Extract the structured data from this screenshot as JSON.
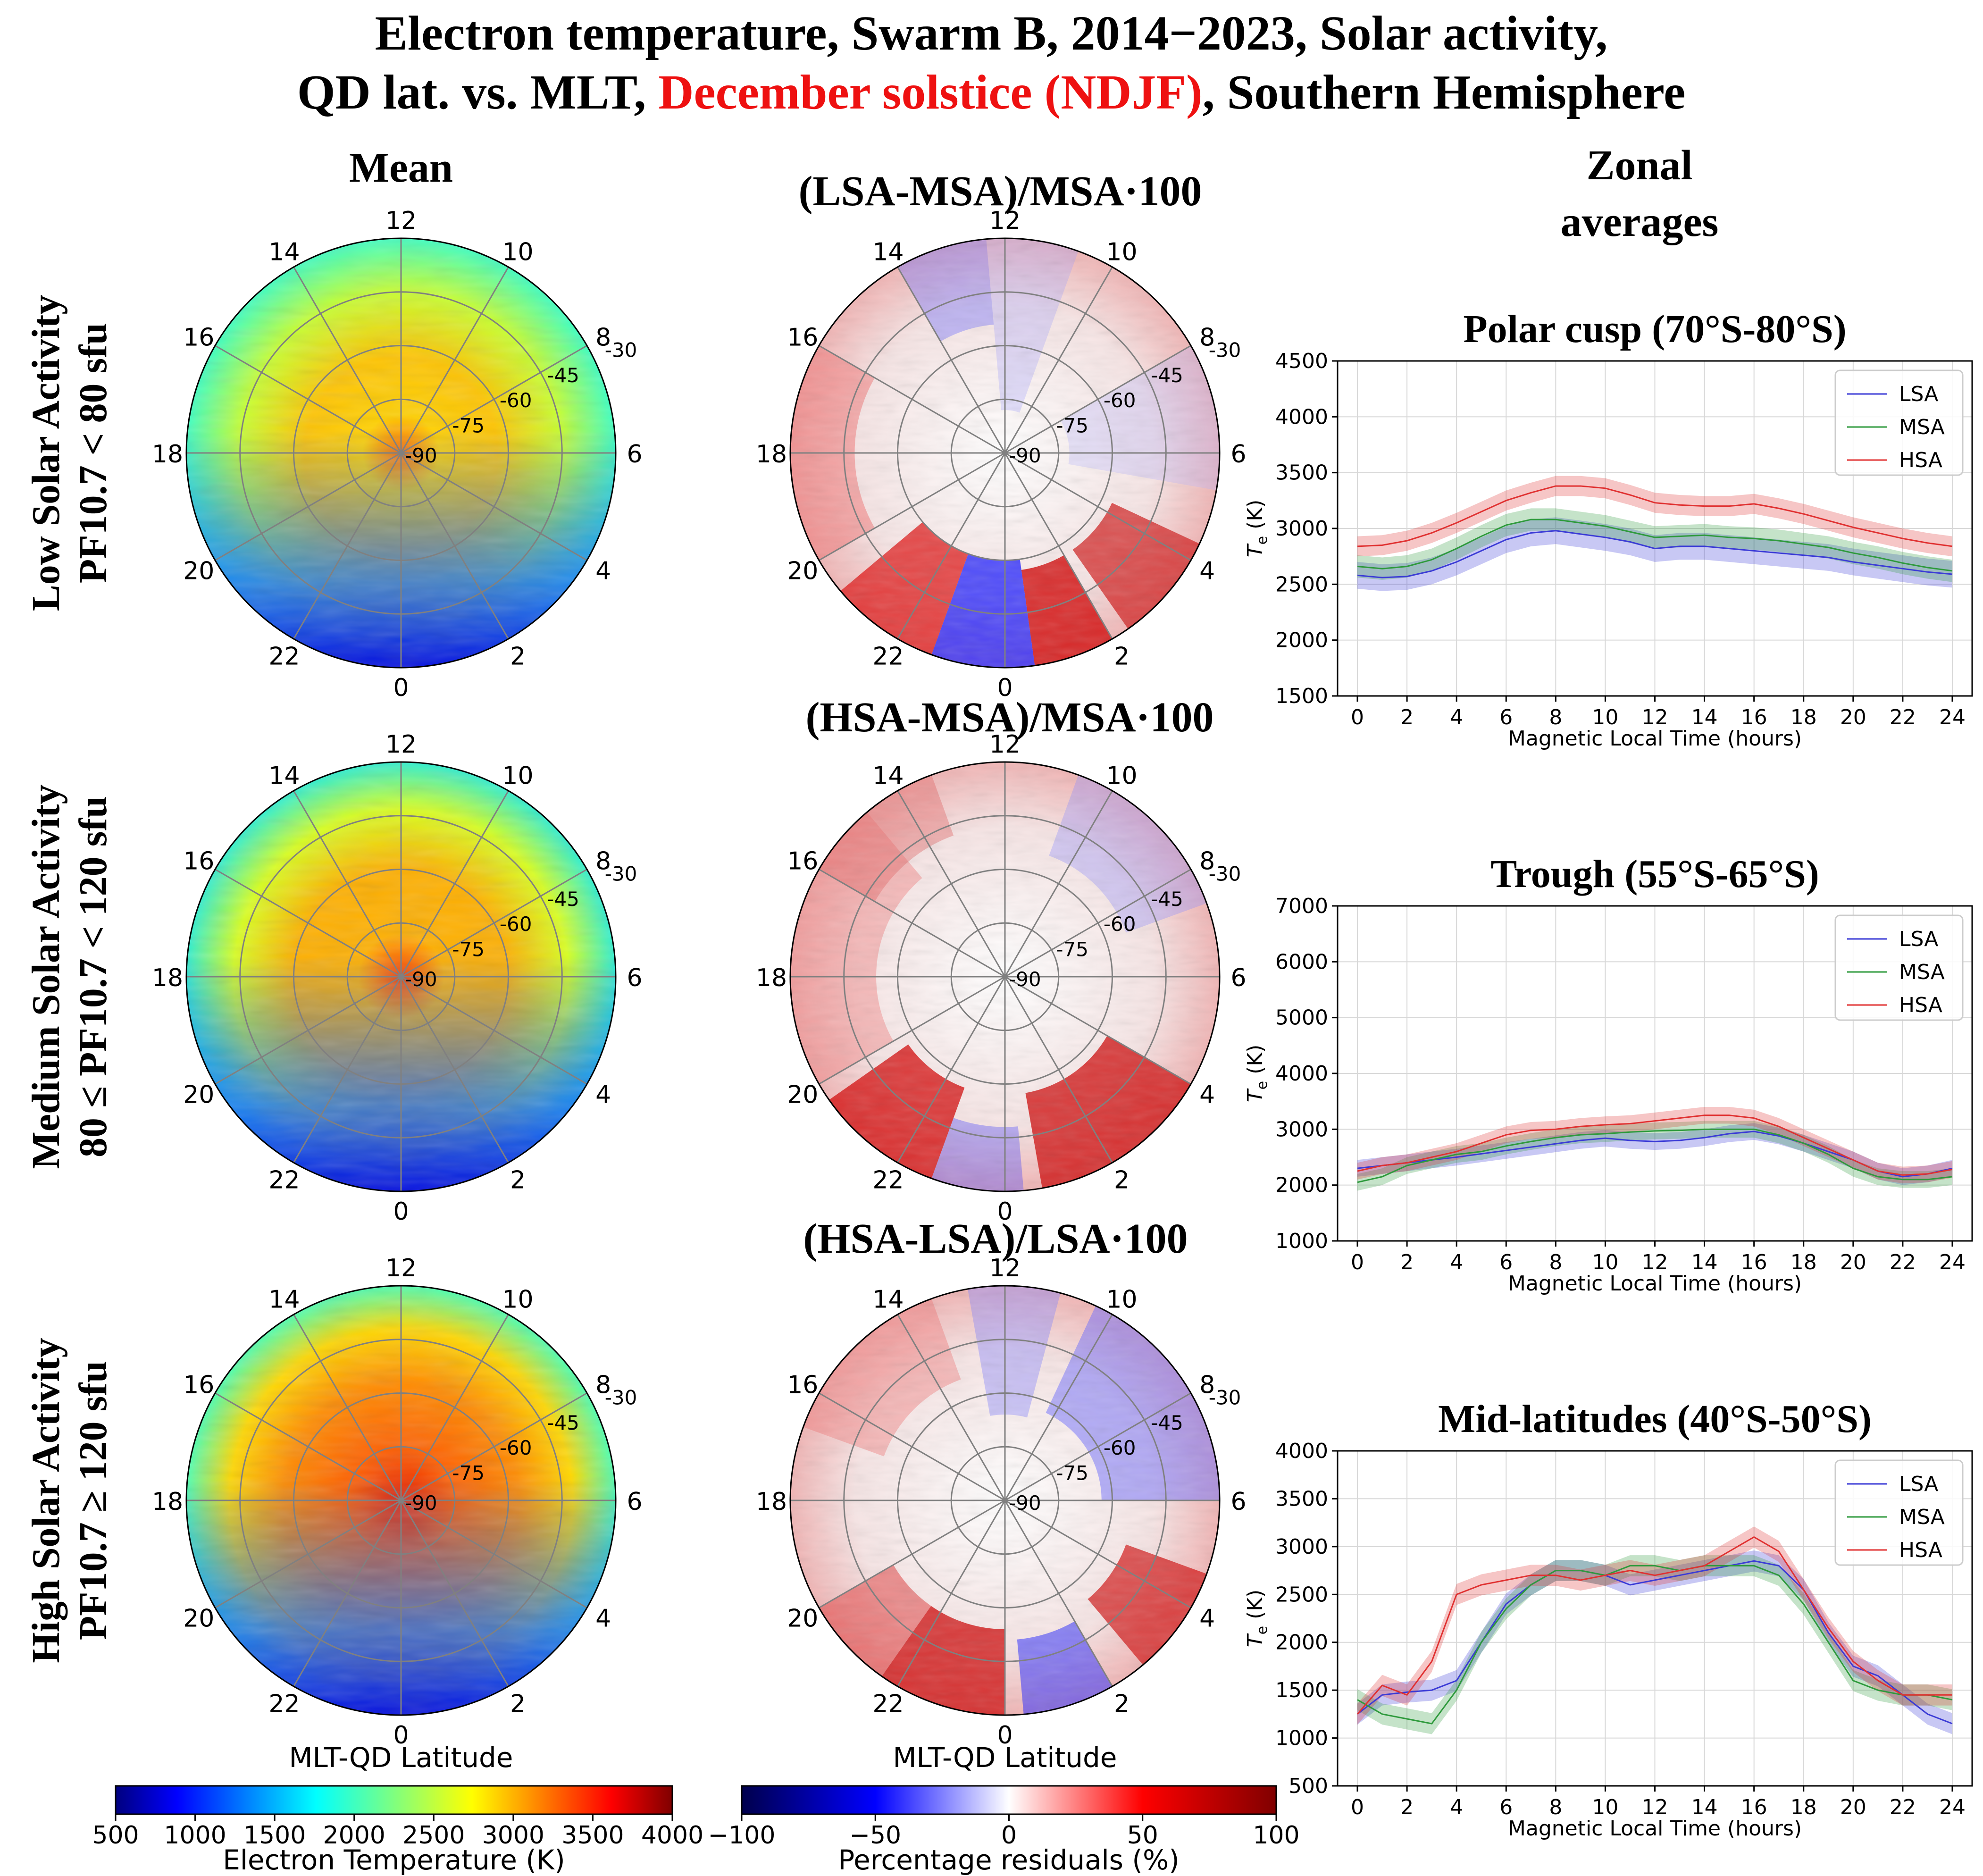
{
  "title": {
    "line1": "Electron temperature, Swarm B, 2014−2023, Solar activity,",
    "line2_prefix": "QD lat. vs. MLT, ",
    "line2_highlight": "December solstice (NDJF)",
    "line2_suffix": ", Southern Hemisphere",
    "highlight_color": "#ee1111"
  },
  "column_titles": {
    "mean": "Mean",
    "zonal_line1": "Zonal",
    "zonal_line2": "averages"
  },
  "row_labels": [
    {
      "line1": "Low Solar Activity",
      "line2": "PF10.7 < 80 sfu"
    },
    {
      "line1": "Medium Solar Activity",
      "line2": "80 ≤ PF10.7 < 120 sfu"
    },
    {
      "line1": "High Solar Activity",
      "line2": "PF10.7 ≥ 120 sfu"
    }
  ],
  "residual_titles": [
    "(LSA-MSA)/MSA·100",
    "(HSA-MSA)/MSA·100",
    "(HSA-LSA)/LSA·100"
  ],
  "polar": {
    "mlt_labels": [
      "12",
      "14",
      "16",
      "18",
      "20",
      "22",
      "0",
      "2",
      "4",
      "6",
      "8",
      "10"
    ],
    "lat_labels": [
      "-90",
      "-75",
      "-60",
      "-45",
      "-30"
    ],
    "xlabel": "MLT-QD Latitude"
  },
  "colorbars": {
    "temperature": {
      "label": "Electron Temperature (K)",
      "ticks": [
        "500",
        "1000",
        "1500",
        "2000",
        "2500",
        "3000",
        "3500",
        "4000"
      ],
      "range": [
        500,
        4000
      ],
      "colormap": "jet"
    },
    "residual": {
      "label": "Percentage residuals (%)",
      "ticks": [
        "−100",
        "−50",
        "0",
        "50",
        "100"
      ],
      "range": [
        -100,
        100
      ],
      "colormap": "seismic"
    }
  },
  "chart_data": [
    {
      "type": "line",
      "title": "Polar cusp (70°S-80°S)",
      "xlabel": "Magnetic Local Time (hours)",
      "ylabel": "T",
      "ylabel_sub": "e",
      "ylabel_unit": " (K)",
      "xlim": [
        -0.8,
        24.8
      ],
      "ylim": [
        1500,
        4500
      ],
      "yticks": [
        1500,
        2000,
        2500,
        3000,
        3500,
        4000,
        4500
      ],
      "xticks": [
        0,
        2,
        4,
        6,
        8,
        10,
        12,
        14,
        16,
        18,
        20,
        22,
        24
      ],
      "grid": true,
      "legend": "top-right",
      "series": [
        {
          "name": "LSA",
          "color": "#3b3bd6",
          "band": 120,
          "x": [
            0,
            1,
            2,
            3,
            4,
            5,
            6,
            7,
            8,
            9,
            10,
            11,
            12,
            13,
            14,
            15,
            16,
            17,
            18,
            19,
            20,
            21,
            22,
            23,
            24
          ],
          "values": [
            2580,
            2560,
            2570,
            2620,
            2700,
            2800,
            2900,
            2960,
            2980,
            2950,
            2920,
            2880,
            2820,
            2840,
            2840,
            2820,
            2800,
            2780,
            2760,
            2740,
            2700,
            2670,
            2640,
            2610,
            2590
          ]
        },
        {
          "name": "MSA",
          "color": "#2e9a3c",
          "band": 100,
          "x": [
            0,
            1,
            2,
            3,
            4,
            5,
            6,
            7,
            8,
            9,
            10,
            11,
            12,
            13,
            14,
            15,
            16,
            17,
            18,
            19,
            20,
            21,
            22,
            23,
            24
          ],
          "values": [
            2660,
            2640,
            2660,
            2720,
            2820,
            2930,
            3030,
            3080,
            3080,
            3050,
            3020,
            2970,
            2920,
            2930,
            2940,
            2920,
            2910,
            2890,
            2860,
            2830,
            2780,
            2740,
            2690,
            2650,
            2620
          ]
        },
        {
          "name": "HSA",
          "color": "#e03131",
          "band": 90,
          "x": [
            0,
            1,
            2,
            3,
            4,
            5,
            6,
            7,
            8,
            9,
            10,
            11,
            12,
            13,
            14,
            15,
            16,
            17,
            18,
            19,
            20,
            21,
            22,
            23,
            24
          ],
          "values": [
            2840,
            2850,
            2890,
            2960,
            3050,
            3150,
            3250,
            3320,
            3380,
            3380,
            3360,
            3300,
            3230,
            3210,
            3200,
            3200,
            3220,
            3180,
            3130,
            3070,
            3010,
            2960,
            2910,
            2870,
            2840
          ]
        }
      ]
    },
    {
      "type": "line",
      "title": "Trough (55°S-65°S)",
      "xlabel": "Magnetic Local Time (hours)",
      "ylabel": "T",
      "ylabel_sub": "e",
      "ylabel_unit": " (K)",
      "xlim": [
        -0.8,
        24.8
      ],
      "ylim": [
        1000,
        7000
      ],
      "yticks": [
        1000,
        2000,
        3000,
        4000,
        5000,
        6000,
        7000
      ],
      "xticks": [
        0,
        2,
        4,
        6,
        8,
        10,
        12,
        14,
        16,
        18,
        20,
        22,
        24
      ],
      "grid": true,
      "legend": "top-right",
      "series": [
        {
          "name": "LSA",
          "color": "#3b3bd6",
          "band": 150,
          "x": [
            0,
            1,
            2,
            3,
            4,
            5,
            6,
            7,
            8,
            9,
            10,
            11,
            12,
            13,
            14,
            15,
            16,
            17,
            18,
            19,
            20,
            21,
            22,
            23,
            24
          ],
          "values": [
            2300,
            2350,
            2400,
            2450,
            2500,
            2560,
            2620,
            2680,
            2740,
            2800,
            2840,
            2800,
            2780,
            2800,
            2850,
            2920,
            2960,
            2880,
            2750,
            2600,
            2450,
            2250,
            2150,
            2200,
            2300
          ]
        },
        {
          "name": "MSA",
          "color": "#2e9a3c",
          "band": 150,
          "x": [
            0,
            1,
            2,
            3,
            4,
            5,
            6,
            7,
            8,
            9,
            10,
            11,
            12,
            13,
            14,
            15,
            16,
            17,
            18,
            19,
            20,
            21,
            22,
            23,
            24
          ],
          "values": [
            2050,
            2150,
            2350,
            2450,
            2550,
            2600,
            2700,
            2780,
            2850,
            2900,
            2920,
            2950,
            2970,
            2980,
            3000,
            3000,
            3000,
            2900,
            2750,
            2550,
            2300,
            2150,
            2100,
            2100,
            2150
          ]
        },
        {
          "name": "HSA",
          "color": "#e03131",
          "band": 150,
          "x": [
            0,
            1,
            2,
            3,
            4,
            5,
            6,
            7,
            8,
            9,
            10,
            11,
            12,
            13,
            14,
            15,
            16,
            17,
            18,
            19,
            20,
            21,
            22,
            23,
            24
          ],
          "values": [
            2250,
            2350,
            2400,
            2500,
            2600,
            2750,
            2900,
            2980,
            3000,
            3050,
            3080,
            3100,
            3150,
            3200,
            3250,
            3250,
            3200,
            3050,
            2850,
            2650,
            2450,
            2250,
            2180,
            2200,
            2280
          ]
        }
      ]
    },
    {
      "type": "line",
      "title": "Mid-latitudes (40°S-50°S)",
      "xlabel": "Magnetic Local Time (hours)",
      "ylabel": "T",
      "ylabel_sub": "e",
      "ylabel_unit": " (K)",
      "xlim": [
        -0.8,
        24.8
      ],
      "ylim": [
        500,
        4000
      ],
      "yticks": [
        500,
        1000,
        1500,
        2000,
        2500,
        3000,
        3500,
        4000
      ],
      "xticks": [
        0,
        2,
        4,
        6,
        8,
        10,
        12,
        14,
        16,
        18,
        20,
        22,
        24
      ],
      "grid": true,
      "legend": "top-right",
      "series": [
        {
          "name": "LSA",
          "color": "#3b3bd6",
          "band": 110,
          "x": [
            0,
            1,
            2,
            3,
            4,
            5,
            6,
            7,
            8,
            9,
            10,
            11,
            12,
            13,
            14,
            15,
            16,
            17,
            18,
            19,
            20,
            21,
            22,
            23,
            24
          ],
          "values": [
            1250,
            1450,
            1480,
            1500,
            1600,
            2000,
            2400,
            2600,
            2750,
            2750,
            2700,
            2600,
            2650,
            2700,
            2750,
            2800,
            2850,
            2800,
            2550,
            2100,
            1750,
            1650,
            1450,
            1250,
            1150
          ]
        },
        {
          "name": "MSA",
          "color": "#2e9a3c",
          "band": 110,
          "x": [
            0,
            1,
            2,
            3,
            4,
            5,
            6,
            7,
            8,
            9,
            10,
            11,
            12,
            13,
            14,
            15,
            16,
            17,
            18,
            19,
            20,
            21,
            22,
            23,
            24
          ],
          "values": [
            1400,
            1250,
            1200,
            1150,
            1500,
            2000,
            2350,
            2600,
            2750,
            2750,
            2700,
            2800,
            2800,
            2750,
            2800,
            2800,
            2800,
            2700,
            2400,
            2000,
            1600,
            1500,
            1450,
            1450,
            1400
          ]
        },
        {
          "name": "HSA",
          "color": "#e03131",
          "band": 110,
          "x": [
            0,
            1,
            2,
            3,
            4,
            5,
            6,
            7,
            8,
            9,
            10,
            11,
            12,
            13,
            14,
            15,
            16,
            17,
            18,
            19,
            20,
            21,
            22,
            23,
            24
          ],
          "values": [
            1250,
            1550,
            1450,
            1800,
            2500,
            2600,
            2650,
            2700,
            2700,
            2650,
            2700,
            2750,
            2700,
            2750,
            2800,
            2950,
            3100,
            2950,
            2550,
            2150,
            1800,
            1600,
            1450,
            1450,
            1450
          ]
        }
      ]
    }
  ]
}
